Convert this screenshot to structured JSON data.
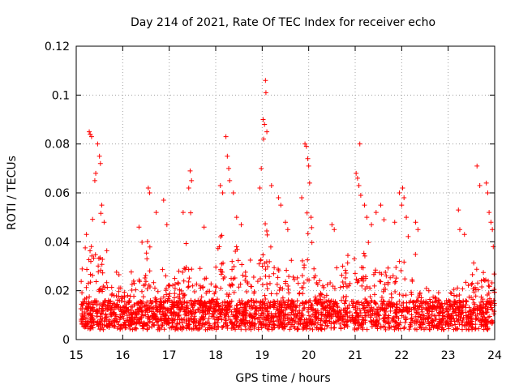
{
  "chart_data": {
    "type": "scatter",
    "title": "Day 214 of 2021, Rate Of TEC Index for receiver echo",
    "xlabel": "GPS time / hours",
    "ylabel": "ROTI / TECUs",
    "xlim": [
      15,
      24
    ],
    "ylim": [
      0,
      0.12
    ],
    "x_ticks": [
      "15",
      "16",
      "17",
      "18",
      "19",
      "20",
      "21",
      "22",
      "23",
      "24"
    ],
    "y_ticks": [
      "0",
      "0.02",
      "0.04",
      "0.06",
      "0.08",
      "0.1",
      "0.12"
    ],
    "grid": true,
    "marker": "+",
    "marker_color": "#ff0000",
    "peak_points": [
      {
        "x": 15.28,
        "y": 0.085
      },
      {
        "x": 15.3,
        "y": 0.084
      },
      {
        "x": 15.33,
        "y": 0.083
      },
      {
        "x": 15.46,
        "y": 0.08
      },
      {
        "x": 15.5,
        "y": 0.075
      },
      {
        "x": 15.52,
        "y": 0.072
      },
      {
        "x": 15.42,
        "y": 0.068
      },
      {
        "x": 15.4,
        "y": 0.065
      },
      {
        "x": 15.55,
        "y": 0.055
      },
      {
        "x": 15.6,
        "y": 0.048
      },
      {
        "x": 15.22,
        "y": 0.043
      },
      {
        "x": 16.35,
        "y": 0.046
      },
      {
        "x": 16.55,
        "y": 0.062
      },
      {
        "x": 16.58,
        "y": 0.06
      },
      {
        "x": 16.72,
        "y": 0.052
      },
      {
        "x": 16.88,
        "y": 0.057
      },
      {
        "x": 16.95,
        "y": 0.047
      },
      {
        "x": 17.3,
        "y": 0.052
      },
      {
        "x": 17.42,
        "y": 0.062
      },
      {
        "x": 17.45,
        "y": 0.069
      },
      {
        "x": 17.48,
        "y": 0.065
      },
      {
        "x": 17.75,
        "y": 0.046
      },
      {
        "x": 18.1,
        "y": 0.063
      },
      {
        "x": 18.15,
        "y": 0.06
      },
      {
        "x": 18.22,
        "y": 0.083
      },
      {
        "x": 18.25,
        "y": 0.075
      },
      {
        "x": 18.28,
        "y": 0.07
      },
      {
        "x": 18.3,
        "y": 0.065
      },
      {
        "x": 18.38,
        "y": 0.06
      },
      {
        "x": 18.45,
        "y": 0.05
      },
      {
        "x": 18.55,
        "y": 0.047
      },
      {
        "x": 18.95,
        "y": 0.062
      },
      {
        "x": 18.98,
        "y": 0.07
      },
      {
        "x": 19.02,
        "y": 0.09
      },
      {
        "x": 19.05,
        "y": 0.088
      },
      {
        "x": 19.07,
        "y": 0.106
      },
      {
        "x": 19.08,
        "y": 0.101
      },
      {
        "x": 19.1,
        "y": 0.085
      },
      {
        "x": 19.03,
        "y": 0.082
      },
      {
        "x": 19.2,
        "y": 0.063
      },
      {
        "x": 19.35,
        "y": 0.058
      },
      {
        "x": 19.4,
        "y": 0.055
      },
      {
        "x": 19.5,
        "y": 0.048
      },
      {
        "x": 19.55,
        "y": 0.045
      },
      {
        "x": 19.85,
        "y": 0.058
      },
      {
        "x": 19.92,
        "y": 0.08
      },
      {
        "x": 19.95,
        "y": 0.079
      },
      {
        "x": 19.98,
        "y": 0.074
      },
      {
        "x": 20.0,
        "y": 0.071
      },
      {
        "x": 20.02,
        "y": 0.064
      },
      {
        "x": 20.05,
        "y": 0.05
      },
      {
        "x": 20.5,
        "y": 0.047
      },
      {
        "x": 20.55,
        "y": 0.045
      },
      {
        "x": 21.02,
        "y": 0.068
      },
      {
        "x": 21.05,
        "y": 0.066
      },
      {
        "x": 21.08,
        "y": 0.063
      },
      {
        "x": 21.1,
        "y": 0.08
      },
      {
        "x": 21.12,
        "y": 0.059
      },
      {
        "x": 21.2,
        "y": 0.055
      },
      {
        "x": 21.25,
        "y": 0.05
      },
      {
        "x": 21.35,
        "y": 0.047
      },
      {
        "x": 21.45,
        "y": 0.052
      },
      {
        "x": 21.55,
        "y": 0.055
      },
      {
        "x": 21.62,
        "y": 0.049
      },
      {
        "x": 21.85,
        "y": 0.048
      },
      {
        "x": 21.95,
        "y": 0.06
      },
      {
        "x": 22.02,
        "y": 0.062
      },
      {
        "x": 22.05,
        "y": 0.058
      },
      {
        "x": 22.0,
        "y": 0.055
      },
      {
        "x": 22.1,
        "y": 0.05
      },
      {
        "x": 22.3,
        "y": 0.048
      },
      {
        "x": 22.35,
        "y": 0.045
      },
      {
        "x": 23.22,
        "y": 0.053
      },
      {
        "x": 23.25,
        "y": 0.045
      },
      {
        "x": 23.35,
        "y": 0.043
      },
      {
        "x": 23.62,
        "y": 0.071
      },
      {
        "x": 23.68,
        "y": 0.063
      },
      {
        "x": 23.82,
        "y": 0.064
      },
      {
        "x": 23.85,
        "y": 0.06
      },
      {
        "x": 23.88,
        "y": 0.052
      },
      {
        "x": 23.92,
        "y": 0.048
      },
      {
        "x": 23.95,
        "y": 0.045
      },
      {
        "x": 23.97,
        "y": 0.038
      }
    ],
    "envelope": [
      {
        "x": 15.1,
        "y": 0.03
      },
      {
        "x": 15.25,
        "y": 0.045
      },
      {
        "x": 15.35,
        "y": 0.07
      },
      {
        "x": 15.5,
        "y": 0.06
      },
      {
        "x": 15.7,
        "y": 0.03
      },
      {
        "x": 15.9,
        "y": 0.028
      },
      {
        "x": 16.1,
        "y": 0.027
      },
      {
        "x": 16.3,
        "y": 0.035
      },
      {
        "x": 16.5,
        "y": 0.045
      },
      {
        "x": 16.7,
        "y": 0.032
      },
      {
        "x": 16.9,
        "y": 0.038
      },
      {
        "x": 17.1,
        "y": 0.03
      },
      {
        "x": 17.3,
        "y": 0.035
      },
      {
        "x": 17.45,
        "y": 0.055
      },
      {
        "x": 17.6,
        "y": 0.03
      },
      {
        "x": 17.8,
        "y": 0.028
      },
      {
        "x": 18.0,
        "y": 0.035
      },
      {
        "x": 18.2,
        "y": 0.055
      },
      {
        "x": 18.4,
        "y": 0.045
      },
      {
        "x": 18.6,
        "y": 0.032
      },
      {
        "x": 18.8,
        "y": 0.035
      },
      {
        "x": 19.0,
        "y": 0.055
      },
      {
        "x": 19.2,
        "y": 0.045
      },
      {
        "x": 19.4,
        "y": 0.045
      },
      {
        "x": 19.6,
        "y": 0.038
      },
      {
        "x": 19.8,
        "y": 0.04
      },
      {
        "x": 20.0,
        "y": 0.055
      },
      {
        "x": 20.2,
        "y": 0.035
      },
      {
        "x": 20.4,
        "y": 0.03
      },
      {
        "x": 20.6,
        "y": 0.035
      },
      {
        "x": 20.8,
        "y": 0.032
      },
      {
        "x": 21.0,
        "y": 0.045
      },
      {
        "x": 21.2,
        "y": 0.045
      },
      {
        "x": 21.4,
        "y": 0.04
      },
      {
        "x": 21.6,
        "y": 0.045
      },
      {
        "x": 21.8,
        "y": 0.04
      },
      {
        "x": 22.0,
        "y": 0.05
      },
      {
        "x": 22.2,
        "y": 0.04
      },
      {
        "x": 22.4,
        "y": 0.03
      },
      {
        "x": 22.6,
        "y": 0.022
      },
      {
        "x": 22.8,
        "y": 0.02
      },
      {
        "x": 23.0,
        "y": 0.018
      },
      {
        "x": 23.2,
        "y": 0.025
      },
      {
        "x": 23.4,
        "y": 0.03
      },
      {
        "x": 23.6,
        "y": 0.032
      },
      {
        "x": 23.8,
        "y": 0.035
      },
      {
        "x": 24.0,
        "y": 0.03
      }
    ]
  }
}
